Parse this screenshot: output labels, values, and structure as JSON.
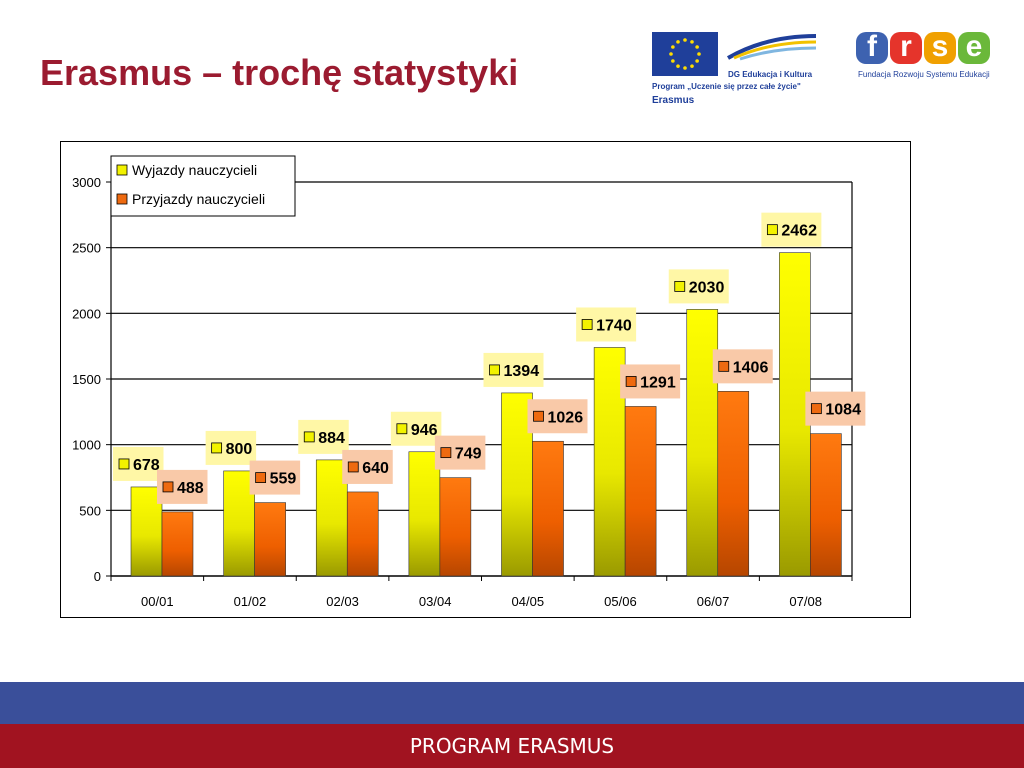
{
  "slide": {
    "title": "Erasmus – trochę statystyki",
    "footer": "PROGRAM ERASMUS"
  },
  "logos": {
    "eu_line1": "DG Edukacja i Kultura",
    "eu_line2": "Program „Uczenie się przez całe życie\"",
    "eu_line3": "Erasmus",
    "frse_letters": [
      "f",
      "r",
      "s",
      "e"
    ],
    "frse_caption": "Fundacja Rozwoju Systemu Edukacji"
  },
  "colors": {
    "title": "#9b1b30",
    "footer": "#a11320",
    "band": "#3a4f9a",
    "series1": "#f2f200",
    "series2": "#ee6a10",
    "label1_bg": "#fff7a6",
    "label2_bg": "#f9c9a8"
  },
  "chart_data": {
    "type": "bar",
    "categories": [
      "00/01",
      "01/02",
      "02/03",
      "03/04",
      "04/05",
      "05/06",
      "06/07",
      "07/08"
    ],
    "series": [
      {
        "name": "Wyjazdy nauczycieli",
        "values": [
          678,
          800,
          884,
          946,
          1394,
          1740,
          2030,
          2462
        ]
      },
      {
        "name": "Przyjazdy nauczycieli",
        "values": [
          488,
          559,
          640,
          749,
          1026,
          1291,
          1406,
          1084
        ]
      }
    ],
    "yticks": [
      0,
      500,
      1000,
      1500,
      2000,
      2500,
      3000
    ],
    "ylim": [
      0,
      3000
    ],
    "grid": true,
    "legend": "top-left",
    "data_labels": true
  }
}
